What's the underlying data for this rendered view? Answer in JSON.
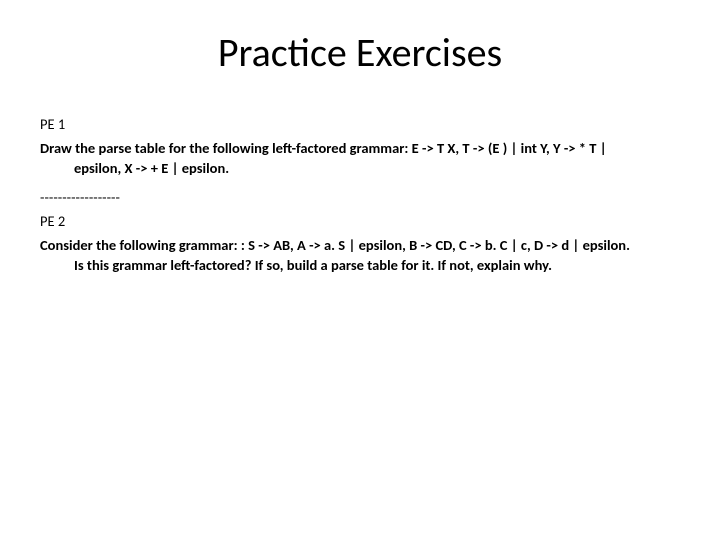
{
  "title": "Practice Exercises",
  "pe1": {
    "label": "PE 1",
    "line1": "Draw the parse table for the following left-factored grammar: E -> T X, T -> (E ) | int Y, Y -> * T |",
    "line2": "epsilon, X -> + E | epsilon."
  },
  "divider": "------------------",
  "pe2": {
    "label": "PE 2",
    "line1": "Consider the following grammar: : S -> AB, A -> a. S | epsilon, B -> CD, C -> b. C | c, D -> d | epsilon.",
    "line2": "Is this grammar left-factored? If so, build a parse table for it. If not, explain why."
  },
  "colors": {
    "background": "#ffffff",
    "text": "#000000"
  },
  "typography": {
    "title_fontsize": 40,
    "body_fontsize": 14.5,
    "body_weight": 700
  }
}
